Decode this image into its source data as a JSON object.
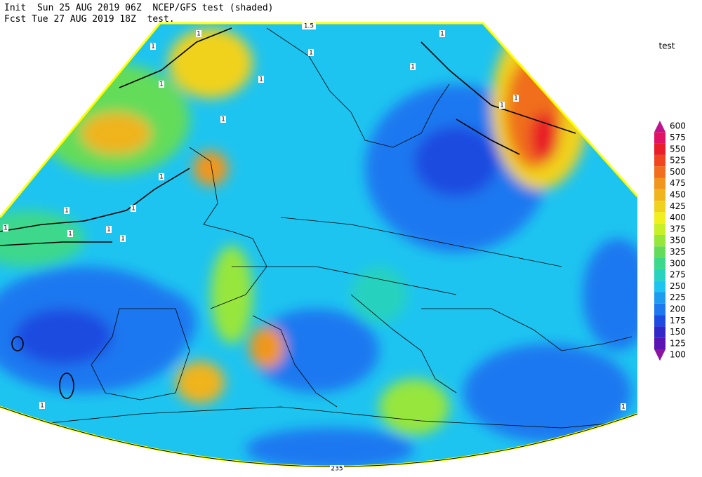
{
  "header": {
    "line1": "Init  Sun 25 AUG 2019 06Z  NCEP/GFS test (shaded)",
    "line2": "Fcst Tue 27 AUG 2019 18Z  test."
  },
  "legend": {
    "title": "test",
    "labels": [
      "600",
      "575",
      "550",
      "525",
      "500",
      "475",
      "450",
      "425",
      "400",
      "375",
      "350",
      "325",
      "300",
      "275",
      "250",
      "225",
      "200",
      "175",
      "150",
      "125",
      "100"
    ],
    "colors": [
      "#c0148c",
      "#e01464",
      "#e81e28",
      "#f04620",
      "#f06e1e",
      "#f0961e",
      "#f0b41e",
      "#f0d21e",
      "#f0f01e",
      "#c8f028",
      "#96e63c",
      "#64dc5a",
      "#3cd88c",
      "#28d2be",
      "#1ec4f0",
      "#1e9cf0",
      "#1e78f0",
      "#1e4ce0",
      "#3228c8",
      "#5a14b4",
      "#8c14a0"
    ]
  },
  "contour_labels": [
    "1",
    "1",
    "1",
    "1",
    "1",
    "1",
    "1",
    "1",
    "1",
    "1",
    "1",
    "1",
    "1",
    "1",
    "1",
    "1",
    "1",
    "1",
    "1",
    "1.5",
    "235"
  ]
}
